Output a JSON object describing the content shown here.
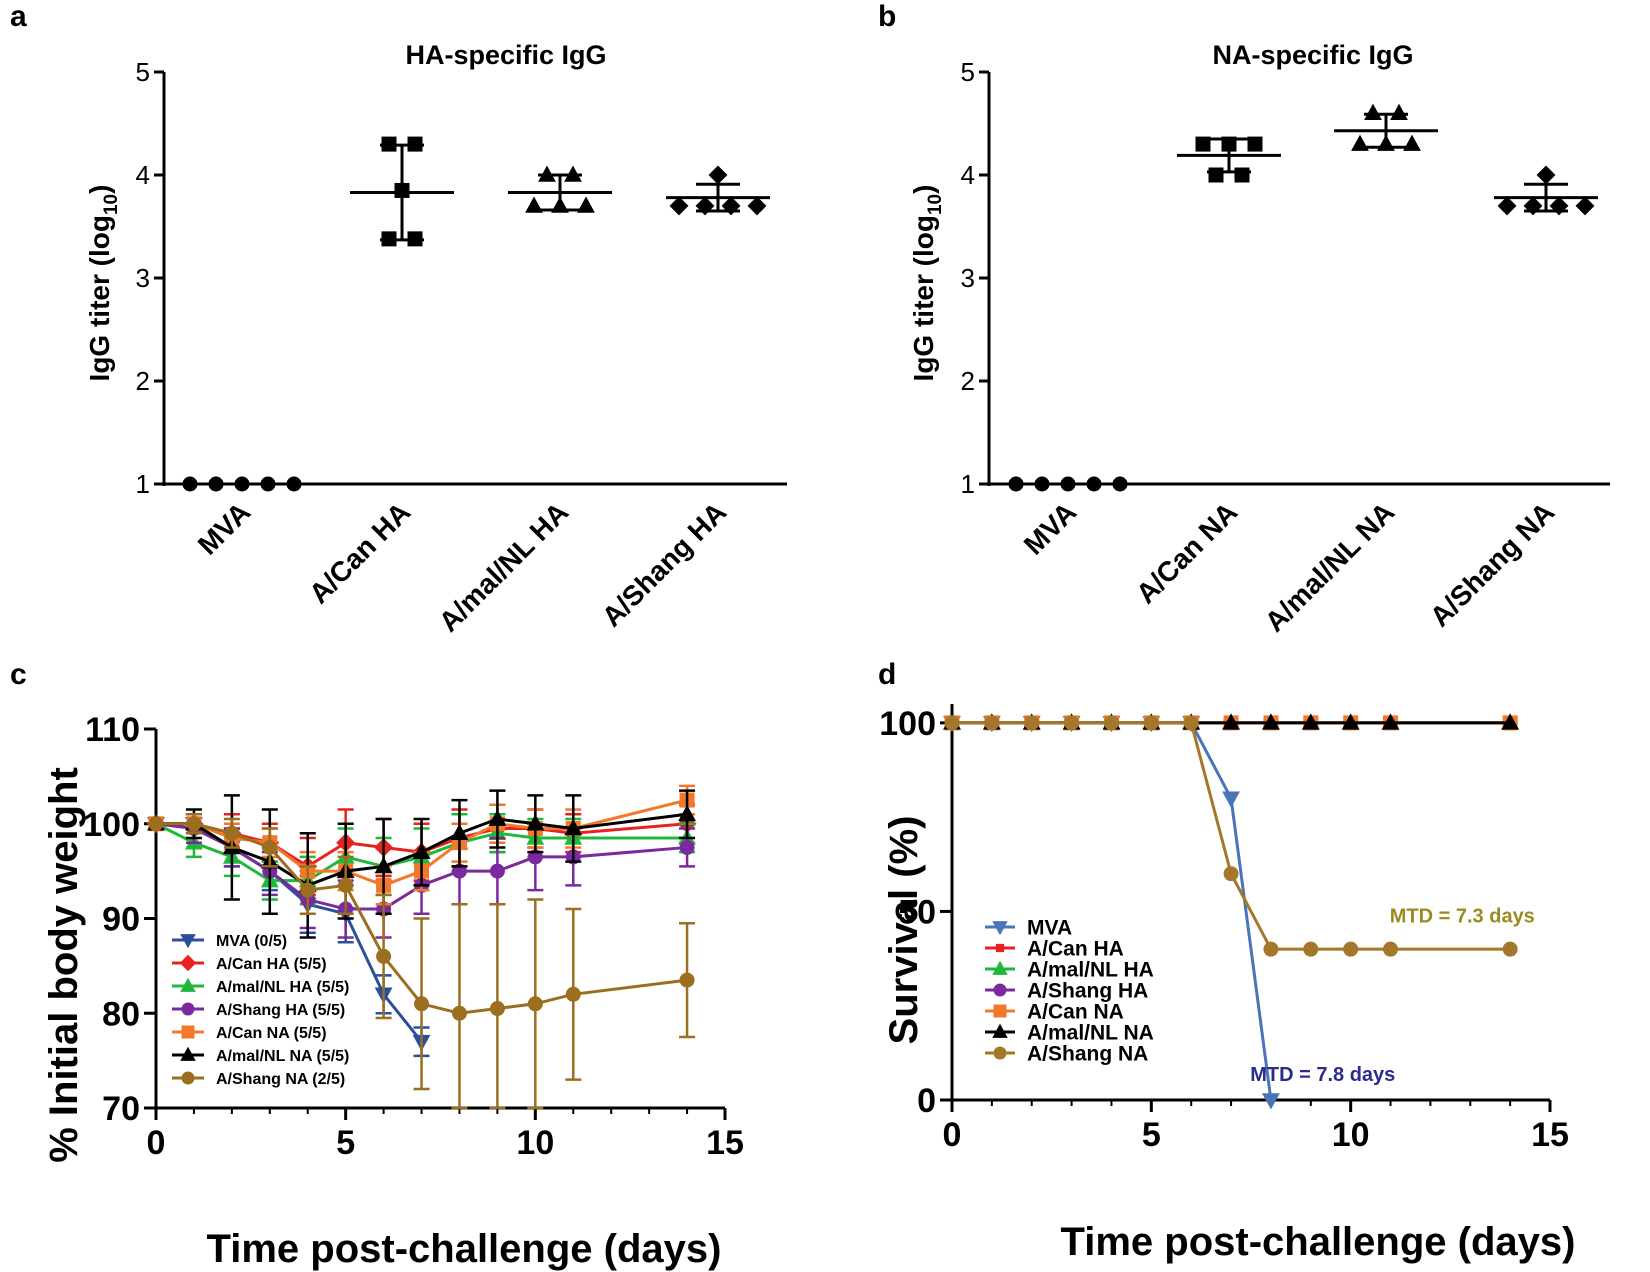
{
  "panels": {
    "a": "a",
    "b": "b",
    "c": "c",
    "d": "d"
  },
  "chart_data": [
    {
      "id": "a",
      "type": "scatter",
      "title": "HA-specific IgG",
      "ylabel_main": "IgG titer (log",
      "ylabel_sub": "10",
      "ylabel_close": ")",
      "ylim": [
        1,
        5
      ],
      "yticks": [
        "1",
        "2",
        "3",
        "4",
        "5"
      ],
      "categories": [
        "MVA",
        "A/Can HA",
        "A/mal/NL HA",
        "A/Shang HA"
      ],
      "groups": [
        {
          "category": "MVA",
          "marker": "circle",
          "points": [
            1,
            1,
            1,
            1,
            1
          ],
          "mean": 1,
          "sd": 0
        },
        {
          "category": "A/Can HA",
          "marker": "square",
          "points": [
            4.3,
            4.3,
            3.85,
            3.38,
            3.38
          ],
          "mean": 3.83,
          "sd": 0.46
        },
        {
          "category": "A/mal/NL HA",
          "marker": "triangle",
          "points": [
            4.0,
            4.0,
            3.7,
            3.7,
            3.7
          ],
          "mean": 3.83,
          "sd": 0.17
        },
        {
          "category": "A/Shang HA",
          "marker": "diamond",
          "points": [
            4.0,
            3.7,
            3.7,
            3.7,
            3.7
          ],
          "mean": 3.78,
          "sd": 0.13
        }
      ]
    },
    {
      "id": "b",
      "type": "scatter",
      "title": "NA-specific IgG",
      "ylabel_main": "IgG titer (log",
      "ylabel_sub": "10",
      "ylabel_close": ")",
      "ylim": [
        1,
        5
      ],
      "yticks": [
        "1",
        "2",
        "3",
        "4",
        "5"
      ],
      "categories": [
        "MVA",
        "A/Can NA",
        "A/mal/NL NA",
        "A/Shang NA"
      ],
      "groups": [
        {
          "category": "MVA",
          "marker": "circle",
          "points": [
            1,
            1,
            1,
            1,
            1
          ],
          "mean": 1,
          "sd": 0
        },
        {
          "category": "A/Can NA",
          "marker": "square",
          "points": [
            4.3,
            4.3,
            4.3,
            4.0,
            4.0
          ],
          "mean": 4.19,
          "sd": 0.16
        },
        {
          "category": "A/mal/NL NA",
          "marker": "triangle",
          "points": [
            4.6,
            4.6,
            4.3,
            4.3,
            4.3
          ],
          "mean": 4.43,
          "sd": 0.16
        },
        {
          "category": "A/Shang NA",
          "marker": "diamond",
          "points": [
            4.0,
            3.7,
            3.7,
            3.7,
            3.7
          ],
          "mean": 3.78,
          "sd": 0.13
        }
      ]
    },
    {
      "id": "c",
      "type": "line",
      "xlabel": "Time post-challenge (days)",
      "ylabel": "% Initial body weight",
      "xlim": [
        0,
        15
      ],
      "ylim": [
        70,
        110
      ],
      "xticks": [
        "0",
        "5",
        "10",
        "15"
      ],
      "yticks": [
        "70",
        "80",
        "90",
        "100",
        "110"
      ],
      "legend_position": "bottom-left",
      "series": [
        {
          "name": "MVA (0/5)",
          "color": "#2b4f9c",
          "marker": "triangle-down",
          "x": [
            0,
            1,
            2,
            3,
            4,
            5,
            6,
            7
          ],
          "y": [
            100,
            100,
            97.5,
            95,
            91.5,
            90.5,
            82,
            77
          ],
          "err": [
            0,
            1,
            2,
            2,
            3,
            3,
            2,
            1.5
          ]
        },
        {
          "name": "A/Can HA (5/5)",
          "color": "#e6231f",
          "marker": "diamond",
          "x": [
            0,
            1,
            2,
            3,
            4,
            5,
            6,
            7,
            8,
            9,
            10,
            11,
            14
          ],
          "y": [
            100,
            100,
            99,
            98,
            95.5,
            98,
            97.5,
            97,
            98.5,
            99.5,
            99.5,
            99,
            100
          ],
          "err": [
            0,
            1,
            2,
            2,
            3,
            3.5,
            3,
            3,
            3,
            2.5,
            2,
            2,
            2
          ]
        },
        {
          "name": "A/mal/NL HA (5/5)",
          "color": "#1fb83b",
          "marker": "triangle",
          "x": [
            0,
            1,
            2,
            3,
            4,
            5,
            6,
            7,
            8,
            9,
            10,
            11,
            14
          ],
          "y": [
            100,
            98,
            96.5,
            94,
            94,
            96.5,
            95.5,
            96.5,
            98,
            99,
            98.5,
            98.5,
            98.5
          ],
          "err": [
            0,
            1.5,
            2,
            2,
            2.5,
            3,
            3,
            3,
            3,
            2,
            2,
            2,
            1.5
          ]
        },
        {
          "name": "A/Shang HA (5/5)",
          "color": "#7a2a9e",
          "marker": "circle",
          "x": [
            0,
            1,
            2,
            3,
            4,
            5,
            6,
            7,
            8,
            9,
            10,
            11,
            14
          ],
          "y": [
            100,
            99.5,
            97.5,
            95,
            92,
            91,
            91,
            93.5,
            95,
            95,
            96.5,
            96.5,
            97.5
          ],
          "err": [
            0,
            1.5,
            2,
            2.5,
            3,
            3,
            3,
            3,
            3.5,
            3.5,
            3.5,
            3,
            2
          ]
        },
        {
          "name": "A/Can NA (5/5)",
          "color": "#f2782b",
          "marker": "square",
          "x": [
            0,
            1,
            2,
            3,
            4,
            5,
            6,
            7,
            8,
            9,
            10,
            11,
            14
          ],
          "y": [
            100,
            100,
            98.5,
            98,
            95,
            95,
            93.5,
            95,
            98,
            100,
            99.5,
            99.5,
            102.5
          ],
          "err": [
            0,
            1,
            1.5,
            1.5,
            2,
            2,
            2,
            2,
            2,
            2,
            2,
            2,
            1.5
          ]
        },
        {
          "name": "A/mal/NL NA (5/5)",
          "color": "#000000",
          "marker": "triangle",
          "x": [
            0,
            1,
            2,
            3,
            4,
            5,
            6,
            7,
            8,
            9,
            10,
            11,
            14
          ],
          "y": [
            100,
            100,
            97.5,
            96,
            93.5,
            95,
            95.5,
            97,
            99,
            100.5,
            100,
            99.5,
            101
          ],
          "err": [
            0,
            1.5,
            5.5,
            5.5,
            5.5,
            5,
            5,
            3.5,
            3.5,
            3,
            3,
            3.5,
            2.5
          ]
        },
        {
          "name": "A/Shang NA (2/5)",
          "color": "#9b6f1f",
          "marker": "circle",
          "x": [
            0,
            1,
            2,
            3,
            4,
            5,
            6,
            7,
            8,
            9,
            10,
            11,
            14
          ],
          "y": [
            100,
            100,
            99,
            97.5,
            93,
            93.5,
            86,
            81,
            80,
            80.5,
            81,
            82,
            83.5
          ],
          "err": [
            0,
            1,
            1.5,
            2,
            2.5,
            3,
            6.5,
            9,
            11.5,
            11,
            11,
            9,
            6
          ]
        }
      ]
    },
    {
      "id": "d",
      "type": "line",
      "xlabel": "Time post-challenge (days)",
      "ylabel": "Survival (%)",
      "xlim": [
        0,
        15
      ],
      "ylim": [
        0,
        105
      ],
      "xticks": [
        "0",
        "5",
        "10",
        "15"
      ],
      "yticks": [
        "0",
        "50",
        "100"
      ],
      "legend_position": "center-left",
      "annotations": [
        {
          "text": "MTD = 7.3 days",
          "color": "#9b8a1f",
          "x": 12.8,
          "y": 47
        },
        {
          "text": "MTD = 7.8 days",
          "color": "#2b2b8c",
          "x": 9.3,
          "y": 5
        }
      ],
      "series": [
        {
          "name": "MVA",
          "color": "#4a74b8",
          "marker": "triangle-down",
          "x": [
            0,
            1,
            2,
            3,
            4,
            5,
            6,
            7,
            8
          ],
          "y": [
            100,
            100,
            100,
            100,
            100,
            100,
            100,
            80,
            0
          ]
        },
        {
          "name": "A/Can HA",
          "color": "#e6231f",
          "marker": "square-small",
          "x": [
            0,
            1,
            2,
            3,
            4,
            5,
            6,
            7,
            8,
            9,
            10,
            11,
            14
          ],
          "y": [
            100,
            100,
            100,
            100,
            100,
            100,
            100,
            100,
            100,
            100,
            100,
            100,
            100
          ]
        },
        {
          "name": "A/mal/NL HA",
          "color": "#1fb83b",
          "marker": "triangle",
          "x": [
            0,
            1,
            2,
            3,
            4,
            5,
            6,
            7,
            8,
            9,
            10,
            11,
            14
          ],
          "y": [
            100,
            100,
            100,
            100,
            100,
            100,
            100,
            100,
            100,
            100,
            100,
            100,
            100
          ]
        },
        {
          "name": "A/Shang HA",
          "color": "#7a2a9e",
          "marker": "circle",
          "x": [
            0,
            1,
            2,
            3,
            4,
            5,
            6,
            7,
            8,
            9,
            10,
            11,
            14
          ],
          "y": [
            100,
            100,
            100,
            100,
            100,
            100,
            100,
            100,
            100,
            100,
            100,
            100,
            100
          ]
        },
        {
          "name": "A/Can NA",
          "color": "#f2782b",
          "marker": "square",
          "x": [
            0,
            1,
            2,
            3,
            4,
            5,
            6,
            7,
            8,
            9,
            10,
            11,
            14
          ],
          "y": [
            100,
            100,
            100,
            100,
            100,
            100,
            100,
            100,
            100,
            100,
            100,
            100,
            100
          ]
        },
        {
          "name": "A/mal/NL NA",
          "color": "#000000",
          "marker": "triangle",
          "x": [
            0,
            1,
            2,
            3,
            4,
            5,
            6,
            7,
            8,
            9,
            10,
            11,
            14
          ],
          "y": [
            100,
            100,
            100,
            100,
            100,
            100,
            100,
            100,
            100,
            100,
            100,
            100,
            100
          ]
        },
        {
          "name": "A/Shang NA",
          "color": "#a5772b",
          "marker": "circle",
          "x": [
            0,
            1,
            2,
            3,
            4,
            5,
            6,
            7,
            8,
            9,
            10,
            11,
            14
          ],
          "y": [
            100,
            100,
            100,
            100,
            100,
            100,
            100,
            60,
            40,
            40,
            40,
            40,
            40
          ]
        }
      ]
    }
  ]
}
